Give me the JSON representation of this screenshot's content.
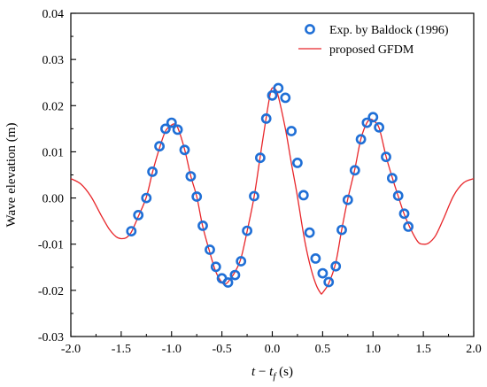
{
  "chart_data": {
    "type": "line",
    "xlabel_parts": [
      "t",
      " − ",
      "t",
      "f",
      " (s)"
    ],
    "ylabel": "Wave elevation (m)",
    "xlim": [
      -2.0,
      2.0
    ],
    "ylim": [
      -0.03,
      0.04
    ],
    "xticks": [
      "-2.0",
      "-1.5",
      "-1.0",
      "-0.5",
      "0.0",
      "0.5",
      "1.0",
      "1.5",
      "2.0"
    ],
    "yticks": [
      "-0.03",
      "-0.02",
      "-0.01",
      "0.00",
      "0.01",
      "0.02",
      "0.03",
      "0.04"
    ],
    "legend_position": "top-right",
    "series": [
      {
        "name": "Exp. by Baldock (1996)",
        "kind": "markers",
        "color": "#1f6fd6",
        "x": [
          -1.4,
          -1.33,
          -1.25,
          -1.19,
          -1.12,
          -1.06,
          -1.0,
          -0.94,
          -0.87,
          -0.81,
          -0.75,
          -0.69,
          -0.62,
          -0.56,
          -0.5,
          -0.44,
          -0.37,
          -0.31,
          -0.25,
          -0.18,
          -0.12,
          -0.06,
          0.0,
          0.06,
          0.13,
          0.19,
          0.25,
          0.31,
          0.37,
          0.43,
          0.5,
          0.56,
          0.63,
          0.69,
          0.75,
          0.82,
          0.88,
          0.94,
          1.0,
          1.06,
          1.13,
          1.19,
          1.25,
          1.31,
          1.35
        ],
        "y": [
          -0.0072,
          -0.0037,
          0.0,
          0.0057,
          0.0112,
          0.015,
          0.0163,
          0.0148,
          0.0104,
          0.0047,
          0.0003,
          -0.006,
          -0.0112,
          -0.0149,
          -0.0174,
          -0.0183,
          -0.0167,
          -0.0137,
          -0.0071,
          0.0004,
          0.0087,
          0.0172,
          0.0222,
          0.0238,
          0.0217,
          0.0145,
          0.0076,
          0.0006,
          -0.0075,
          -0.0131,
          -0.0163,
          -0.0182,
          -0.0148,
          -0.0069,
          -0.0004,
          0.006,
          0.0127,
          0.0163,
          0.0175,
          0.0153,
          0.0089,
          0.0043,
          0.0005,
          -0.0034,
          -0.0062
        ]
      },
      {
        "name": "proposed GFDM",
        "kind": "line",
        "color": "#e8262a",
        "x": [
          -2.0,
          -1.9,
          -1.8,
          -1.7,
          -1.62,
          -1.55,
          -1.5,
          -1.45,
          -1.4,
          -1.33,
          -1.25,
          -1.19,
          -1.12,
          -1.06,
          -1.0,
          -0.97,
          -0.94,
          -0.87,
          -0.81,
          -0.75,
          -0.69,
          -0.62,
          -0.56,
          -0.5,
          -0.47,
          -0.44,
          -0.37,
          -0.31,
          -0.25,
          -0.18,
          -0.12,
          -0.06,
          -0.02,
          0.0,
          0.03,
          0.06,
          0.13,
          0.19,
          0.25,
          0.31,
          0.37,
          0.43,
          0.48,
          0.5,
          0.56,
          0.63,
          0.69,
          0.75,
          0.82,
          0.88,
          0.94,
          0.98,
          1.0,
          1.06,
          1.13,
          1.19,
          1.25,
          1.31,
          1.38,
          1.45,
          1.5,
          1.55,
          1.62,
          1.7,
          1.8,
          1.9,
          2.0
        ],
        "y": [
          0.0042,
          0.003,
          0.0003,
          -0.0037,
          -0.0067,
          -0.0084,
          -0.0088,
          -0.0086,
          -0.0074,
          -0.004,
          0.0002,
          0.0055,
          0.0108,
          0.0145,
          0.0158,
          0.016,
          0.0153,
          0.0105,
          0.0048,
          0.0003,
          -0.0062,
          -0.0118,
          -0.016,
          -0.0183,
          -0.0186,
          -0.0182,
          -0.016,
          -0.013,
          -0.0072,
          0.0003,
          0.009,
          0.0175,
          0.0226,
          0.0238,
          0.0236,
          0.022,
          0.015,
          0.0075,
          0.0003,
          -0.0078,
          -0.0141,
          -0.0185,
          -0.0206,
          -0.0205,
          -0.0185,
          -0.014,
          -0.0068,
          -0.0002,
          0.0063,
          0.0128,
          0.0163,
          0.017,
          0.0168,
          0.0152,
          0.009,
          0.0045,
          0.0004,
          -0.0035,
          -0.007,
          -0.0096,
          -0.01,
          -0.0098,
          -0.0082,
          -0.0045,
          0.0005,
          0.0033,
          0.0042
        ]
      }
    ]
  }
}
